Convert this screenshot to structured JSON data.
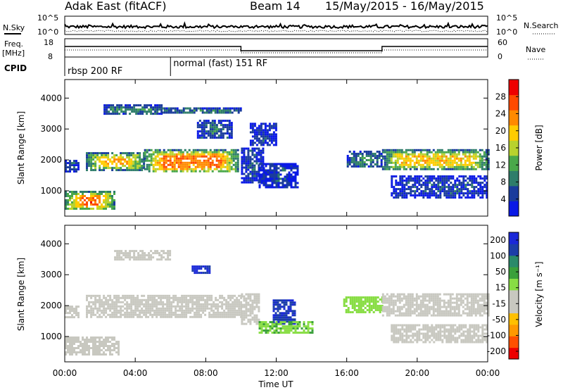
{
  "header": {
    "site": "Adak East (fitACF)",
    "beam": "Beam 14",
    "dates": "15/May/2015 - 16/May/2015"
  },
  "ancillary": {
    "nsky_label": "N.Sky",
    "nsky_ticks": [
      "10^5",
      "10^0"
    ],
    "nsearch_label": "N.Search",
    "nsearch_ticks": [
      "10^5",
      "10^0"
    ],
    "freq_label": "Freq.",
    "freq_unit": "[MHz]",
    "freq_ticks": [
      "18",
      "8"
    ],
    "nave_label": "Nave",
    "nave_ticks": [
      "60",
      "0"
    ],
    "cpid_label": "CPID",
    "cpid_segments": [
      {
        "name": "rbsp 200 RF",
        "start_hour": 0,
        "end_hour": 6
      },
      {
        "name": "normal (fast) 151 RF",
        "start_hour": 6,
        "end_hour": 24
      }
    ]
  },
  "x_ticks": [
    "00:00",
    "04:00",
    "08:00",
    "12:00",
    "16:00",
    "20:00",
    "00:00"
  ],
  "x_label": "Time UT",
  "chart_data": [
    {
      "type": "heatmap",
      "panel": "power",
      "ylabel": "Slant Range [km]",
      "ylim": [
        180,
        4600
      ],
      "yticks": [
        "1000",
        "2000",
        "3000",
        "4000"
      ],
      "xlim_hours": [
        0,
        24
      ],
      "colorbar": {
        "label": "Power [dB]",
        "ticks": [
          "4",
          "8",
          "12",
          "16",
          "20",
          "24",
          "28"
        ],
        "range": [
          0,
          32
        ],
        "colors": [
          "#0a19e6",
          "#1a3c9c",
          "#2e7d6a",
          "#4aa84a",
          "#b8d22e",
          "#ffcc00",
          "#ff8a00",
          "#ff4a00",
          "#ee0000"
        ]
      },
      "regions": [
        {
          "t0": 0.0,
          "t1": 2.8,
          "r0": 400,
          "r1": 1000,
          "level": 26
        },
        {
          "t0": 0.0,
          "t1": 0.8,
          "r0": 1650,
          "r1": 2000,
          "level": 10
        },
        {
          "t0": 1.2,
          "t1": 4.5,
          "r0": 1700,
          "r1": 2250,
          "level": 22
        },
        {
          "t0": 4.5,
          "t1": 9.8,
          "r0": 1600,
          "r1": 2350,
          "level": 24
        },
        {
          "t0": 2.2,
          "t1": 5.5,
          "r0": 3500,
          "r1": 3800,
          "level": 12
        },
        {
          "t0": 5.5,
          "t1": 10.0,
          "r0": 3500,
          "r1": 3700,
          "level": 14
        },
        {
          "t0": 7.5,
          "t1": 9.5,
          "r0": 2700,
          "r1": 3300,
          "level": 9
        },
        {
          "t0": 10.0,
          "t1": 11.2,
          "r0": 1300,
          "r1": 2400,
          "level": 8
        },
        {
          "t0": 11.0,
          "t1": 13.2,
          "r0": 1100,
          "r1": 1900,
          "level": 6
        },
        {
          "t0": 10.5,
          "t1": 12.0,
          "r0": 2500,
          "r1": 3200,
          "level": 6
        },
        {
          "t0": 16.0,
          "t1": 18.0,
          "r0": 1800,
          "r1": 2300,
          "level": 12
        },
        {
          "t0": 18.0,
          "t1": 24.0,
          "r0": 1700,
          "r1": 2350,
          "level": 20
        },
        {
          "t0": 18.5,
          "t1": 24.0,
          "r0": 800,
          "r1": 1500,
          "level": 5
        }
      ]
    },
    {
      "type": "heatmap",
      "panel": "velocity",
      "ylabel": "Slant Range [km]",
      "ylim": [
        180,
        4600
      ],
      "yticks": [
        "1000",
        "2000",
        "3000",
        "4000"
      ],
      "xlim_hours": [
        0,
        24
      ],
      "colorbar": {
        "label": "Velocity [m s⁻¹]",
        "ticks": [
          "200",
          "100",
          "50",
          "15",
          "-15",
          "-50",
          "-100",
          "-200"
        ],
        "range": [
          -250,
          250
        ],
        "colors": [
          "#ee0000",
          "#ff5000",
          "#ff9900",
          "#ffc000",
          "#c8c8c0",
          "#c8c8c0",
          "#88dd44",
          "#3aa03a",
          "#2a8a6a",
          "#1c3ea8",
          "#1a28d8"
        ]
      },
      "regions": [
        {
          "t0": 0.0,
          "t1": 3.0,
          "r0": 400,
          "r1": 1000,
          "value": 0
        },
        {
          "t0": 0.0,
          "t1": 0.8,
          "r0": 1650,
          "r1": 2000,
          "value": 0
        },
        {
          "t0": 1.2,
          "t1": 10.0,
          "r0": 1600,
          "r1": 2350,
          "value": 0
        },
        {
          "t0": 2.8,
          "t1": 6.0,
          "r0": 3500,
          "r1": 3800,
          "value": -5
        },
        {
          "t0": 7.2,
          "t1": 8.2,
          "r0": 3050,
          "r1": 3300,
          "value": 210
        },
        {
          "t0": 10.0,
          "t1": 11.0,
          "r0": 1400,
          "r1": 2400,
          "value": -20
        },
        {
          "t0": 11.8,
          "t1": 13.0,
          "r0": 1400,
          "r1": 2200,
          "value": 200
        },
        {
          "t0": 11.0,
          "t1": 14.0,
          "r0": 1100,
          "r1": 1500,
          "value": 60
        },
        {
          "t0": 15.8,
          "t1": 18.0,
          "r0": 1800,
          "r1": 2300,
          "value": 40
        },
        {
          "t0": 18.0,
          "t1": 24.0,
          "r0": 1700,
          "r1": 2400,
          "value": 0
        },
        {
          "t0": 18.5,
          "t1": 24.0,
          "r0": 800,
          "r1": 1400,
          "value": 0
        }
      ]
    }
  ]
}
